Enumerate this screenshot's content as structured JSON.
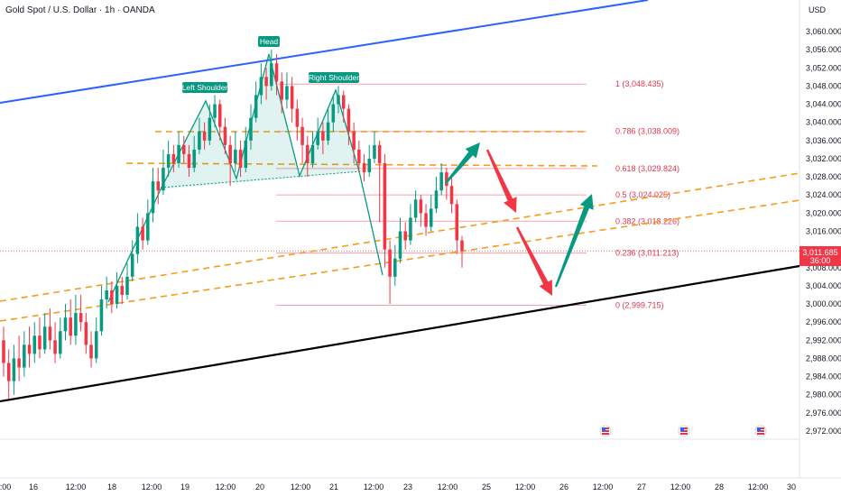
{
  "header": {
    "title": "Gold Spot / U.S. Dollar · 1h · OANDA"
  },
  "price_axis": {
    "currency": "USD"
  },
  "current_price": {
    "value": "3,011.685",
    "countdown": "36:00",
    "bg": "#f23645"
  },
  "chart_data": {
    "type": "candlestick",
    "y_ticks": [
      "3,060.000",
      "3,056.000",
      "3,052.000",
      "3,048.000",
      "3,044.000",
      "3,040.000",
      "3,036.000",
      "3,032.000",
      "3,028.000",
      "3,024.000",
      "3,020.000",
      "3,016.000",
      "3,012.000",
      "3,008.000",
      "3,004.000",
      "3,000.000",
      "2,996.000",
      "2,992.000",
      "2,988.000",
      "2,984.000",
      "2,980.000",
      "2,976.000",
      "2,972.000"
    ],
    "x_ticks": [
      ":00",
      "16",
      "12:00",
      "18",
      "12:00",
      "19",
      "12:00",
      "20",
      "12:00",
      "21",
      "12:00",
      "23",
      "12:00",
      "25",
      "12:00",
      "26",
      "12:00",
      "27",
      "12:00",
      "28",
      "12:00",
      "30"
    ],
    "fib_levels": [
      {
        "label": "1 (3,048.435)",
        "value": 3048.435
      },
      {
        "label": "0.786 (3,038.009)",
        "value": 3038.009
      },
      {
        "label": "0.618 (3,029.824)",
        "value": 3029.824
      },
      {
        "label": "0.5 (3,024.025)",
        "value": 3024.025
      },
      {
        "label": "0.382 (3,018.226)",
        "value": 3018.226
      },
      {
        "label": "0.236 (3,011.213)",
        "value": 3011.213
      },
      {
        "label": "0 (2,999.715)",
        "value": 2999.715
      }
    ],
    "pattern_labels": {
      "left": "Left Shoulder",
      "head": "Head",
      "right": "Right Shoulder"
    },
    "colors": {
      "up": "#089981",
      "down": "#f23645",
      "fib": "#f7a1ab",
      "orange": "#f59c1a",
      "blue": "#2962ff",
      "trend": "#000000"
    },
    "candles": [
      [
        2992,
        2987,
        2995,
        2984
      ],
      [
        2987,
        2983,
        2990,
        2979
      ],
      [
        2983,
        2988,
        2991,
        2980
      ],
      [
        2988,
        2986,
        2993,
        2983
      ],
      [
        2986,
        2991,
        2994,
        2984
      ],
      [
        2991,
        2989,
        2995,
        2986
      ],
      [
        2989,
        2993,
        2996,
        2987
      ],
      [
        2993,
        2990,
        2997,
        2988
      ],
      [
        2990,
        2995,
        2998,
        2989
      ],
      [
        2995,
        2992,
        2999,
        2990
      ],
      [
        2992,
        2989,
        2996,
        2987
      ],
      [
        2989,
        2994,
        2997,
        2988
      ],
      [
        2994,
        2997,
        3000,
        2992
      ],
      [
        2997,
        2993,
        3001,
        2991
      ],
      [
        2993,
        2998,
        3002,
        2991
      ],
      [
        2998,
        2996,
        3002,
        2994
      ],
      [
        2996,
        2991,
        2998,
        2989
      ],
      [
        2991,
        2988,
        2994,
        2986
      ],
      [
        2988,
        2994,
        2997,
        2987
      ],
      [
        2994,
        3001,
        3004,
        2993
      ],
      [
        3001,
        3003,
        3006,
        2999
      ],
      [
        3003,
        3000,
        3005,
        2998
      ],
      [
        3000,
        3004,
        3007,
        2999
      ],
      [
        3004,
        3002,
        3006,
        3000
      ],
      [
        3002,
        3006,
        3009,
        3001
      ],
      [
        3006,
        3011,
        3014,
        3005
      ],
      [
        3011,
        3017,
        3020,
        3009
      ],
      [
        3017,
        3014,
        3019,
        3012
      ],
      [
        3014,
        3020,
        3023,
        3013
      ],
      [
        3020,
        3027,
        3030,
        3018
      ],
      [
        3027,
        3025,
        3030,
        3022
      ],
      [
        3025,
        3030,
        3034,
        3024
      ],
      [
        3030,
        3033,
        3036,
        3028
      ],
      [
        3033,
        3031,
        3035,
        3029
      ],
      [
        3031,
        3035,
        3038,
        3030
      ],
      [
        3035,
        3033,
        3037,
        3031
      ],
      [
        3033,
        3030,
        3035,
        3028
      ],
      [
        3030,
        3034,
        3037,
        3029
      ],
      [
        3034,
        3038,
        3041,
        3033
      ],
      [
        3038,
        3036,
        3040,
        3034
      ],
      [
        3036,
        3041,
        3044,
        3035
      ],
      [
        3041,
        3044,
        3046,
        3039
      ],
      [
        3044,
        3039,
        3045,
        3036
      ],
      [
        3039,
        3035,
        3041,
        3033
      ],
      [
        3035,
        3031,
        3037,
        3026
      ],
      [
        3031,
        3034,
        3038,
        3029
      ],
      [
        3034,
        3030,
        3036,
        3028
      ],
      [
        3030,
        3036,
        3039,
        3029
      ],
      [
        3036,
        3041,
        3044,
        3034
      ],
      [
        3041,
        3046,
        3049,
        3040
      ],
      [
        3046,
        3050,
        3053,
        3044
      ],
      [
        3050,
        3048,
        3052,
        3045
      ],
      [
        3048,
        3053,
        3056,
        3047
      ],
      [
        3053,
        3049,
        3055,
        3046
      ],
      [
        3049,
        3045,
        3051,
        3042
      ],
      [
        3045,
        3048,
        3051,
        3043
      ],
      [
        3048,
        3043,
        3050,
        3040
      ],
      [
        3043,
        3039,
        3045,
        3036
      ],
      [
        3039,
        3035,
        3041,
        3031
      ],
      [
        3035,
        3031,
        3037,
        3028
      ],
      [
        3031,
        3035,
        3038,
        3030
      ],
      [
        3035,
        3038,
        3041,
        3034
      ],
      [
        3038,
        3036,
        3040,
        3033
      ],
      [
        3036,
        3040,
        3043,
        3035
      ],
      [
        3040,
        3044,
        3046,
        3038
      ],
      [
        3044,
        3046,
        3048,
        3042
      ],
      [
        3046,
        3043,
        3047,
        3040
      ],
      [
        3043,
        3038,
        3044,
        3035
      ],
      [
        3038,
        3034,
        3040,
        3031
      ],
      [
        3034,
        3031,
        3036,
        3029
      ],
      [
        3031,
        3029,
        3033,
        3027
      ],
      [
        3029,
        3032,
        3035,
        3028
      ],
      [
        3032,
        3035,
        3038,
        3031
      ],
      [
        3035,
        3031,
        3036,
        3018
      ],
      [
        3031,
        3012,
        3033,
        3008
      ],
      [
        3012,
        3006,
        3014,
        3000
      ],
      [
        3006,
        3010,
        3013,
        3004
      ],
      [
        3010,
        3016,
        3019,
        3009
      ],
      [
        3016,
        3014,
        3018,
        3012
      ],
      [
        3014,
        3019,
        3022,
        3013
      ],
      [
        3019,
        3023,
        3025,
        3018
      ],
      [
        3023,
        3020,
        3024,
        3017
      ],
      [
        3020,
        3017,
        3022,
        3015
      ],
      [
        3017,
        3021,
        3024,
        3016
      ],
      [
        3021,
        3025,
        3028,
        3020
      ],
      [
        3025,
        3029,
        3031,
        3024
      ],
      [
        3029,
        3026,
        3030,
        3023
      ],
      [
        3026,
        3022,
        3028,
        3020
      ],
      [
        3022,
        3014,
        3023,
        3011
      ],
      [
        3014,
        3011.685,
        3015,
        3008
      ]
    ]
  }
}
